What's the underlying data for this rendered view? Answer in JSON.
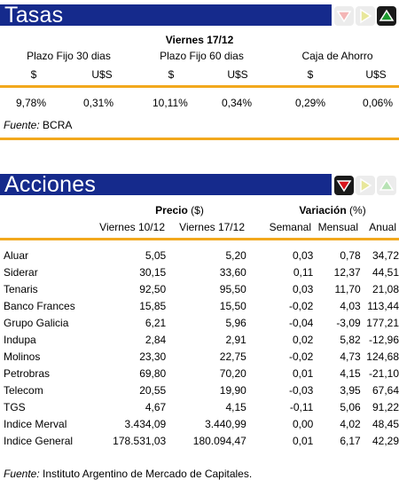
{
  "tasas": {
    "title": "Tasas",
    "date": "Viernes 17/12",
    "groups": [
      {
        "name": "Plazo Fijo 30 dias",
        "cols": [
          "$",
          "U$S"
        ],
        "values": [
          "9,78%",
          "0,31%"
        ]
      },
      {
        "name": "Plazo Fijo 60 dias",
        "cols": [
          "$",
          "U$S"
        ],
        "values": [
          "10,11%",
          "0,34%"
        ]
      },
      {
        "name": "Caja de Ahorro",
        "cols": [
          "$",
          "U$S"
        ],
        "values": [
          "0,29%",
          "0,06%"
        ]
      }
    ],
    "source_label": "Fuente:",
    "source": " BCRA",
    "icons": [
      {
        "name": "down-arrow-icon",
        "state": "inactive",
        "color": "#f4b6b6"
      },
      {
        "name": "right-arrow-icon",
        "state": "inactive",
        "color": "#e8e79a"
      },
      {
        "name": "up-arrow-icon",
        "state": "active",
        "color": "#1c9a2e"
      }
    ]
  },
  "acciones": {
    "title": "Acciones",
    "precio_label": "Precio",
    "precio_unit": " ($)",
    "variacion_label": "Variación",
    "variacion_unit": " (%)",
    "col_headers": [
      "Viernes 10/12",
      "Viernes 17/12",
      "Semanal",
      "Mensual",
      "Anual"
    ],
    "rows": [
      {
        "name": "Aluar",
        "p1": "5,05",
        "p2": "5,20",
        "sem": "0,03",
        "men": "0,78",
        "anu": "34,72"
      },
      {
        "name": "Siderar",
        "p1": "30,15",
        "p2": "33,60",
        "sem": "0,11",
        "men": "12,37",
        "anu": "44,51"
      },
      {
        "name": "Tenaris",
        "p1": "92,50",
        "p2": "95,50",
        "sem": "0,03",
        "men": "11,70",
        "anu": "21,08"
      },
      {
        "name": "Banco Frances",
        "p1": "15,85",
        "p2": "15,50",
        "sem": "-0,02",
        "men": "4,03",
        "anu": "113,44"
      },
      {
        "name": "Grupo Galicia",
        "p1": "6,21",
        "p2": "5,96",
        "sem": "-0,04",
        "men": "-3,09",
        "anu": "177,21"
      },
      {
        "name": "Indupa",
        "p1": "2,84",
        "p2": "2,91",
        "sem": "0,02",
        "men": "5,82",
        "anu": "-12,96"
      },
      {
        "name": "Molinos",
        "p1": "23,30",
        "p2": "22,75",
        "sem": "-0,02",
        "men": "4,73",
        "anu": "124,68"
      },
      {
        "name": "Petrobras",
        "p1": "69,80",
        "p2": "70,20",
        "sem": "0,01",
        "men": "4,15",
        "anu": "-21,10"
      },
      {
        "name": "Telecom",
        "p1": "20,55",
        "p2": "19,90",
        "sem": "-0,03",
        "men": "3,95",
        "anu": "67,64"
      },
      {
        "name": "TGS",
        "p1": "4,67",
        "p2": "4,15",
        "sem": "-0,11",
        "men": "5,06",
        "anu": "91,22"
      },
      {
        "name": "Indice Merval",
        "p1": "3.434,09",
        "p2": "3.440,99",
        "sem": "0,00",
        "men": "4,02",
        "anu": "48,45"
      },
      {
        "name": "Indice General",
        "p1": "178.531,03",
        "p2": "180.094,47",
        "sem": "0,01",
        "men": "6,17",
        "anu": "42,29"
      }
    ],
    "source_label": "Fuente:",
    "source": " Instituto Argentino de Mercado de Capitales.",
    "icons": [
      {
        "name": "down-arrow-icon",
        "state": "active",
        "color": "#d8141c"
      },
      {
        "name": "right-arrow-icon",
        "state": "inactive",
        "color": "#e8e79a"
      },
      {
        "name": "up-arrow-icon",
        "state": "inactive",
        "color": "#b8e3b5"
      }
    ]
  }
}
